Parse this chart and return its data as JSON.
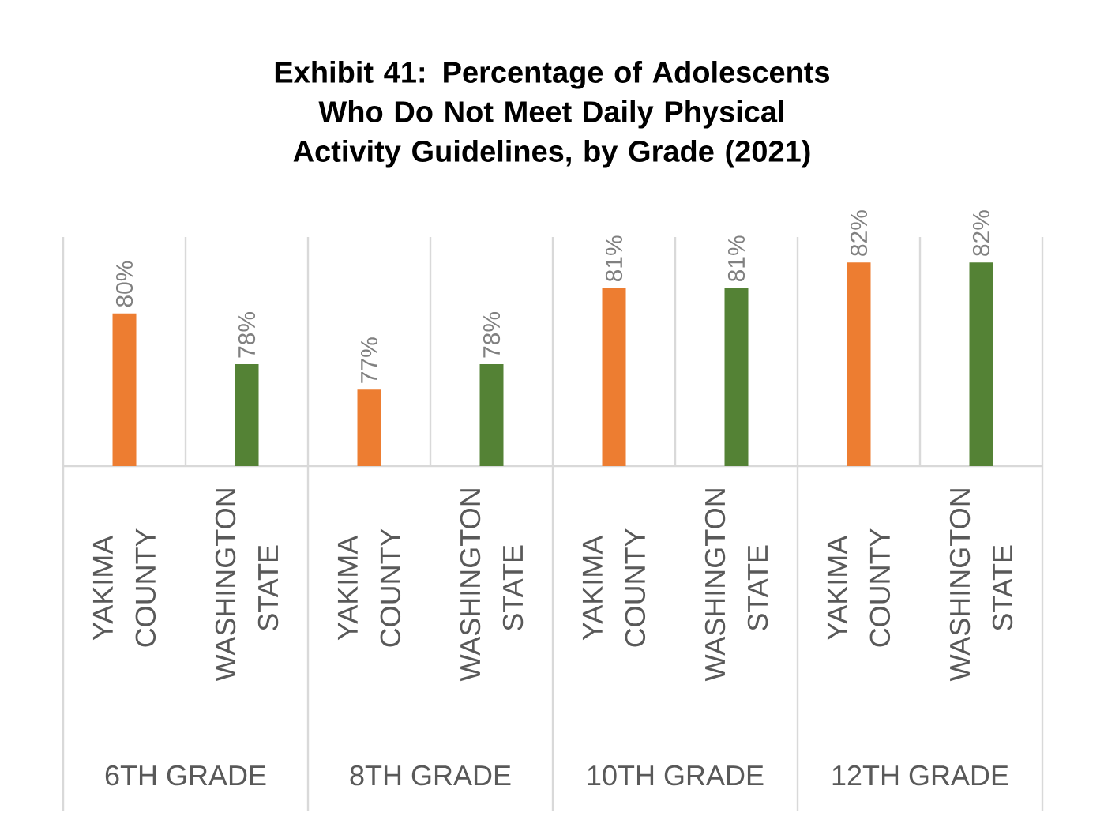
{
  "chart_data": {
    "type": "bar",
    "title": "Exhibit 41: Percentage of Adolescents Who Do Not Meet Daily Physical Activity Guidelines, by Grade (2021)",
    "categories": [
      "6TH GRADE",
      "8TH GRADE",
      "10TH GRADE",
      "12TH GRADE"
    ],
    "series": [
      {
        "name": "YAKIMA COUNTY",
        "color": "#ed7d31",
        "values": [
          80,
          77,
          81,
          82
        ],
        "value_labels": [
          "80%",
          "77%",
          "81%",
          "82%"
        ]
      },
      {
        "name": "WASHINGTON STATE",
        "color": "#548235",
        "values": [
          78,
          78,
          81,
          82
        ],
        "value_labels": [
          "78%",
          "78%",
          "81%",
          "82%"
        ]
      }
    ],
    "ylim": [
      74,
      83
    ],
    "grid": "x"
  }
}
